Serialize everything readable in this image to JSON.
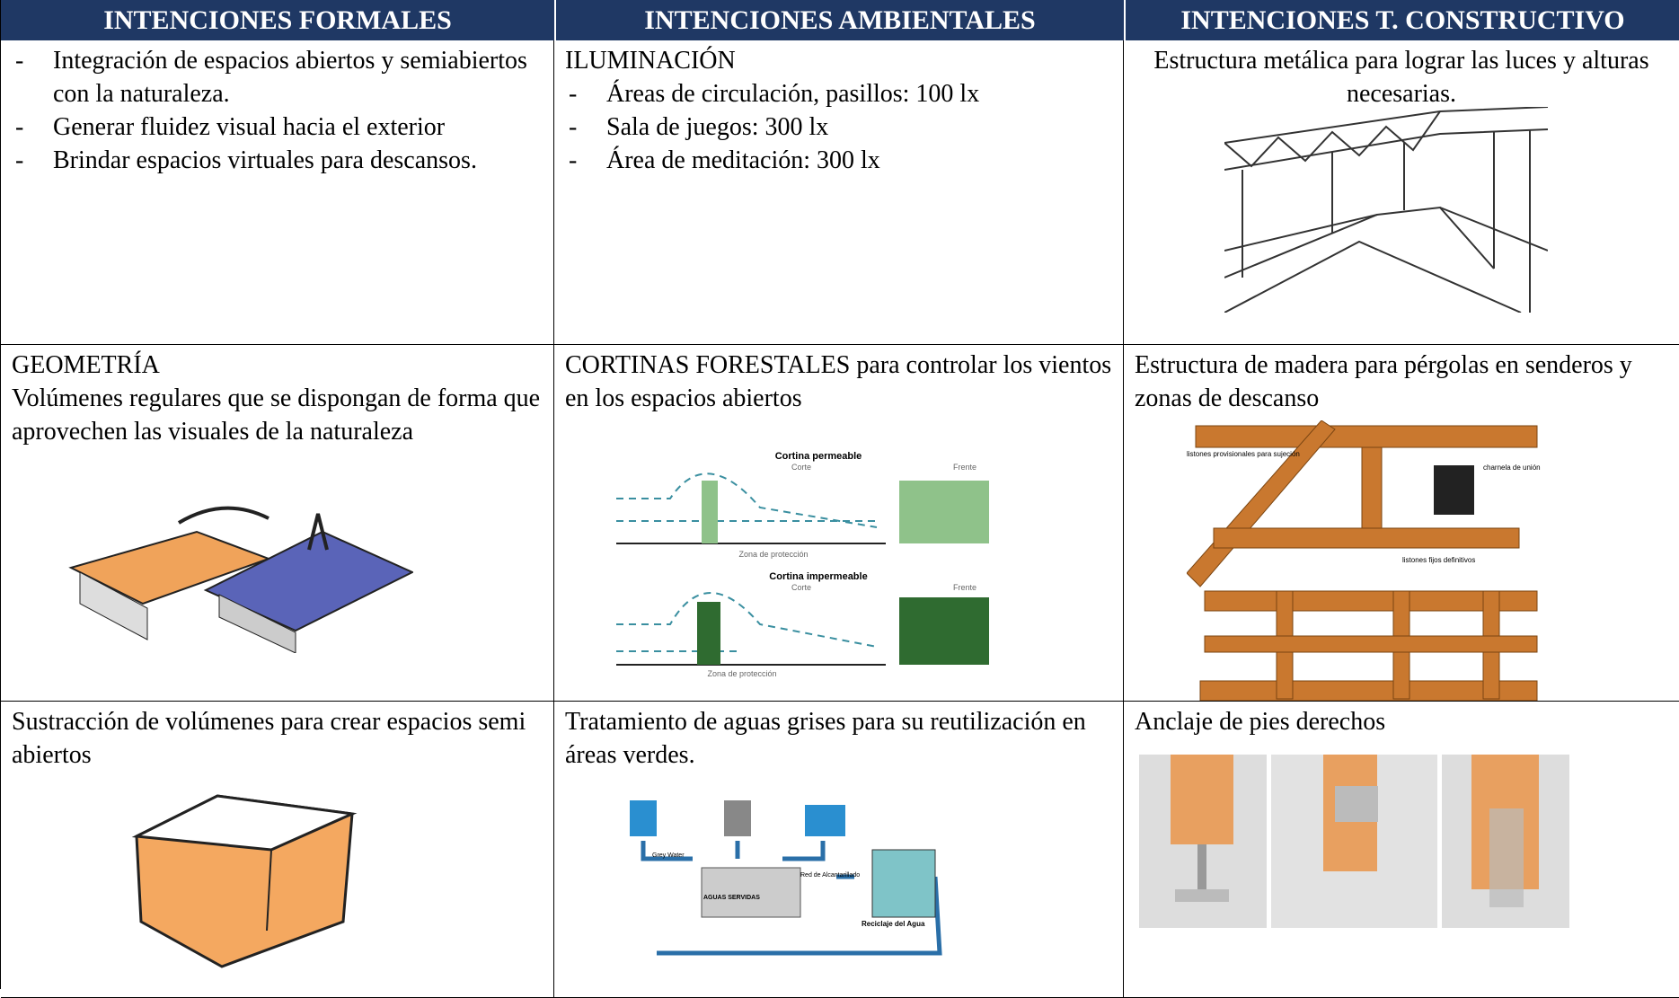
{
  "table": {
    "headers": [
      "INTENCIONES FORMALES",
      "INTENCIONES AMBIENTALES",
      "INTENCIONES T. CONSTRUCTIVO"
    ],
    "rows": [
      [
        {
          "bullets": [
            "Integración de espacios abiertos y semiabiertos con la naturaleza.",
            "Generar fluidez visual hacia el exterior",
            "Brindar espacios virtuales para descansos."
          ]
        },
        {
          "heading": "ILUMINACIÓN",
          "bullets": [
            "Áreas de circulación, pasillos: 100 lx",
            "Sala de juegos: 300 lx",
            "Área de meditación: 300 lx"
          ]
        },
        {
          "text": "Estructura metálica para lograr las luces y alturas necesarias."
        }
      ],
      [
        {
          "heading": "GEOMETRÍA",
          "text": "Volúmenes regulares que se dispongan de forma que aprovechen las visuales de la naturaleza"
        },
        {
          "text": "CORTINAS FORESTALES para controlar los vientos en los espacios abiertos",
          "figure": [
            "Cortina permeable",
            "Corte",
            "Frente",
            "Zona de protección",
            "Cortina impermeable",
            "Corte",
            "Frente",
            "Zona de protección"
          ]
        },
        {
          "text": "Estructura de madera para pérgolas en senderos y zonas de descanso",
          "figure": [
            "listones provisionales para sujeción",
            "charnela de unión",
            "listones fijos definitivos"
          ]
        }
      ],
      [
        {
          "text": "Sustracción de volúmenes para crear espacios semi abiertos"
        },
        {
          "text": "Tratamiento de aguas grises para su reutilización en áreas verdes.",
          "figure": [
            "Grey Water",
            "AGUAS SERVIDAS",
            "Red de Alcantarillado",
            "Reciclaje del Agua"
          ]
        },
        {
          "text": "Anclaje de pies derechos"
        }
      ]
    ]
  }
}
